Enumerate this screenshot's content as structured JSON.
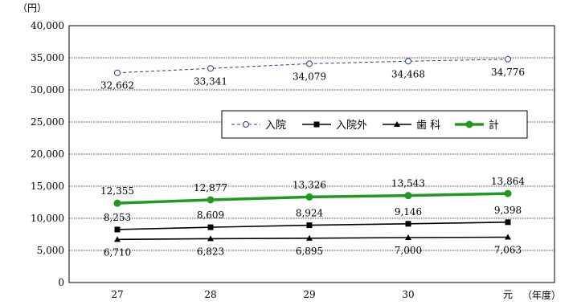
{
  "chart_data": {
    "type": "line",
    "unit_label": "（円）",
    "x_unit_label": "（年度）",
    "categories": [
      "27",
      "28",
      "29",
      "30",
      "元"
    ],
    "ylim": [
      0,
      40000
    ],
    "yticks": [
      0,
      5000,
      10000,
      15000,
      20000,
      25000,
      30000,
      35000,
      40000
    ],
    "ytick_labels": [
      "0",
      "5,000",
      "10,000",
      "15,000",
      "20,000",
      "25,000",
      "30,000",
      "35,000",
      "40,000"
    ],
    "grid": true,
    "legend_position": "right, middle",
    "series": [
      {
        "name": "入院",
        "values": [
          32662,
          33341,
          34079,
          34468,
          34776
        ],
        "labels": [
          "32,662",
          "33,341",
          "34,079",
          "34,468",
          "34,776"
        ],
        "color": "#2b3a8f",
        "style": "dashed",
        "marker": "circle-open",
        "label_position": "below"
      },
      {
        "name": "入院外",
        "values": [
          8253,
          8609,
          8924,
          9146,
          9398
        ],
        "labels": [
          "8,253",
          "8,609",
          "8,924",
          "9,146",
          "9,398"
        ],
        "color": "#000000",
        "style": "solid",
        "marker": "square",
        "label_position": "above"
      },
      {
        "name": "歯 科",
        "values": [
          6710,
          6823,
          6895,
          7000,
          7063
        ],
        "labels": [
          "6,710",
          "6,823",
          "6,895",
          "7,000",
          "7,063"
        ],
        "color": "#000000",
        "style": "solid",
        "marker": "triangle",
        "label_position": "below"
      },
      {
        "name": "計",
        "values": [
          12355,
          12877,
          13326,
          13543,
          13864
        ],
        "labels": [
          "12,355",
          "12,877",
          "13,326",
          "13,543",
          "13,864"
        ],
        "color": "#1f9a1f",
        "style": "thick",
        "marker": "circle-filled",
        "label_position": "above"
      }
    ]
  }
}
